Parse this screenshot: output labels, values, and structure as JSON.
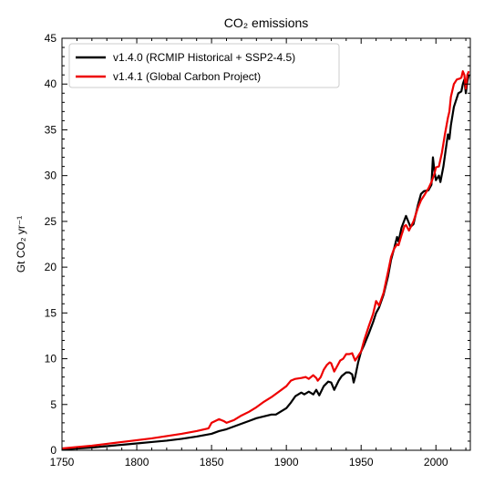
{
  "chart_data": {
    "type": "line",
    "title": "CO₂ emissions",
    "ylabel": "Gt CO₂ yr⁻¹",
    "xlabel": "",
    "xlim": [
      1750,
      2023
    ],
    "ylim": [
      0,
      45
    ],
    "xticks": [
      1750,
      1800,
      1850,
      1900,
      1950,
      2000
    ],
    "yticks": [
      0,
      5,
      10,
      15,
      20,
      25,
      30,
      35,
      40,
      45
    ],
    "legend_position": "top-left",
    "grid": false,
    "series": [
      {
        "name": "v1.4.0 (RCMIP Historical + SSP2-4.5)",
        "color": "#000000",
        "x": [
          1750,
          1760,
          1770,
          1780,
          1790,
          1800,
          1810,
          1820,
          1830,
          1840,
          1850,
          1855,
          1860,
          1865,
          1870,
          1875,
          1880,
          1885,
          1890,
          1893,
          1896,
          1900,
          1903,
          1906,
          1910,
          1912,
          1915,
          1918,
          1920,
          1922,
          1925,
          1928,
          1930,
          1932,
          1935,
          1937,
          1940,
          1942,
          1944,
          1945,
          1946,
          1948,
          1950,
          1952,
          1955,
          1958,
          1960,
          1962,
          1965,
          1968,
          1970,
          1972,
          1974,
          1975,
          1977,
          1980,
          1983,
          1985,
          1988,
          1990,
          1992,
          1995,
          1997,
          1998,
          1999,
          2000,
          2002,
          2003,
          2005,
          2008,
          2009,
          2010,
          2012,
          2014,
          2015,
          2017,
          2018,
          2019,
          2020,
          2021,
          2022
        ],
        "values": [
          0.1,
          0.2,
          0.3,
          0.45,
          0.6,
          0.75,
          0.9,
          1.05,
          1.25,
          1.5,
          1.8,
          2.1,
          2.3,
          2.6,
          2.9,
          3.2,
          3.5,
          3.7,
          3.9,
          3.9,
          4.2,
          4.6,
          5.2,
          5.9,
          6.3,
          6.1,
          6.4,
          6.1,
          6.6,
          6.0,
          7.0,
          7.5,
          7.4,
          6.6,
          7.6,
          8.1,
          8.5,
          8.5,
          8.3,
          7.4,
          8.0,
          9.6,
          10.8,
          11.5,
          12.7,
          14.0,
          15.0,
          15.6,
          17.0,
          19.0,
          20.8,
          22.0,
          23.3,
          22.8,
          24.3,
          25.6,
          24.4,
          24.7,
          26.8,
          28.0,
          28.3,
          28.4,
          29.0,
          32.0,
          30.5,
          29.5,
          30.0,
          29.3,
          31.0,
          34.5,
          34.0,
          35.5,
          37.5,
          38.5,
          39.0,
          39.2,
          40.0,
          40.5,
          39.0,
          40.3,
          41.0
        ]
      },
      {
        "name": "v1.4.1 (Global Carbon Project)",
        "color": "#ee0000",
        "x": [
          1750,
          1760,
          1770,
          1780,
          1790,
          1800,
          1810,
          1820,
          1830,
          1840,
          1848,
          1850,
          1855,
          1858,
          1860,
          1865,
          1870,
          1875,
          1880,
          1885,
          1890,
          1895,
          1900,
          1903,
          1906,
          1910,
          1913,
          1915,
          1918,
          1920,
          1921,
          1923,
          1925,
          1927,
          1929,
          1930,
          1932,
          1934,
          1936,
          1938,
          1940,
          1942,
          1944,
          1946,
          1948,
          1950,
          1952,
          1955,
          1958,
          1960,
          1962,
          1965,
          1968,
          1970,
          1972,
          1974,
          1975,
          1977,
          1979,
          1980,
          1982,
          1985,
          1988,
          1990,
          1992,
          1995,
          1997,
          1999,
          2000,
          2002,
          2004,
          2006,
          2008,
          2009,
          2010,
          2012,
          2014,
          2016,
          2017,
          2018,
          2019,
          2020,
          2021,
          2022
        ],
        "values": [
          0.2,
          0.35,
          0.5,
          0.7,
          0.9,
          1.1,
          1.3,
          1.55,
          1.8,
          2.1,
          2.4,
          3.0,
          3.4,
          3.2,
          3.0,
          3.3,
          3.8,
          4.2,
          4.7,
          5.3,
          5.8,
          6.4,
          7.0,
          7.6,
          7.8,
          7.9,
          8.0,
          7.8,
          8.2,
          7.9,
          7.6,
          8.0,
          8.8,
          9.3,
          9.6,
          9.5,
          8.6,
          9.2,
          9.8,
          10.0,
          10.5,
          10.5,
          10.6,
          9.8,
          10.3,
          10.8,
          12.0,
          13.5,
          14.9,
          16.3,
          15.8,
          17.2,
          19.5,
          21.1,
          22.0,
          22.5,
          22.4,
          23.5,
          24.5,
          24.6,
          24.0,
          25.0,
          26.5,
          27.3,
          27.8,
          28.6,
          29.3,
          30.2,
          30.9,
          31.0,
          32.5,
          34.5,
          36.3,
          37.0,
          38.6,
          40.0,
          40.5,
          40.6,
          40.7,
          41.4,
          41.0,
          39.5,
          41.0,
          41.4
        ]
      }
    ]
  }
}
